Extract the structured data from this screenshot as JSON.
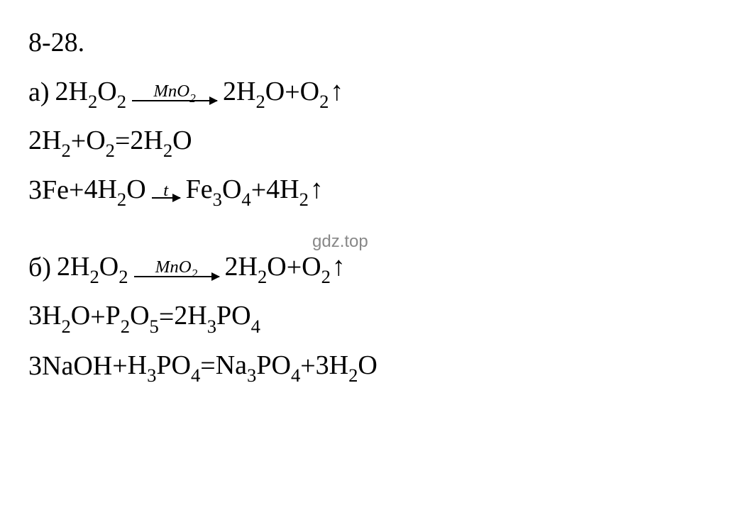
{
  "page": {
    "background_color": "#ffffff",
    "text_color": "#000000",
    "font_family": "Times New Roman",
    "base_fontsize": 38,
    "watermark_color": "#888888"
  },
  "problem_number": "8-28.",
  "watermark": "gdz.top",
  "parts": {
    "a": {
      "label": "а)",
      "equations": [
        {
          "left": "2H2O2",
          "arrow_type": "long",
          "arrow_label": "MnO2",
          "right": "2H2O + O2",
          "gas_arrow": true
        },
        {
          "left": "2H2 + O2",
          "equals": true,
          "right": "2H2O"
        },
        {
          "left": "3Fe + 4H2O",
          "arrow_type": "short",
          "arrow_label": "t",
          "right": "Fe3O4 + 4H2",
          "gas_arrow": true
        }
      ]
    },
    "b": {
      "label": "б)",
      "equations": [
        {
          "left": "2H2O2",
          "arrow_type": "long",
          "arrow_label": "MnO2",
          "right": "2H2O + O2",
          "gas_arrow": true
        },
        {
          "left": "3H2O + P2O5",
          "equals": true,
          "right": "2H3PO4"
        },
        {
          "left": "3NaOH + H3PO4",
          "equals": true,
          "right": "Na3PO4 + 3H2O"
        }
      ]
    }
  },
  "symbols": {
    "coef_2": "2",
    "coef_3": "3",
    "coef_4": "4",
    "H": "H",
    "O": "O",
    "Fe": "Fe",
    "P": "P",
    "Na": "Na",
    "Mn": "Mn",
    "t": "t",
    "plus": " + ",
    "equals": " = ",
    "up": "↑"
  }
}
